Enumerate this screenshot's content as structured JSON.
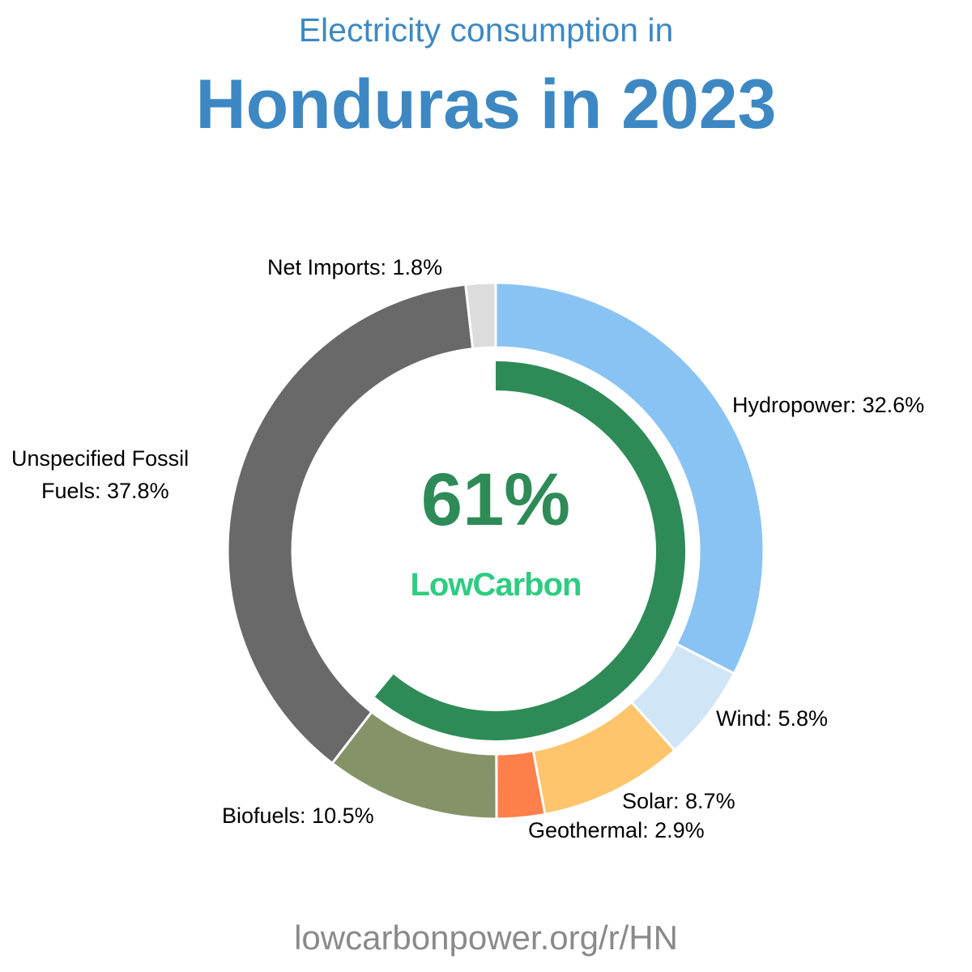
{
  "header": {
    "subtitle": "Electricity consumption in",
    "title": "Honduras in 2023"
  },
  "center": {
    "low_carbon_pct": "61%",
    "brand": "LowCarbon"
  },
  "footer": {
    "url": "lowcarbonpower.org/r/HN"
  },
  "labels": {
    "hydro": "Hydropower: 32.6%",
    "wind": "Wind: 5.8%",
    "solar": "Solar: 8.7%",
    "geothermal": "Geothermal: 2.9%",
    "biofuels": "Biofuels: 10.5%",
    "fossil_line1": "Unspecified Fossil",
    "fossil_line2": "Fuels: 37.8%",
    "imports": "Net Imports: 1.8%"
  },
  "chart_data": {
    "type": "pie",
    "subtype": "donut",
    "title": "Electricity consumption in Honduras in 2023",
    "categories": [
      "Hydropower",
      "Wind",
      "Solar",
      "Geothermal",
      "Biofuels",
      "Unspecified Fossil Fuels",
      "Net Imports"
    ],
    "values": [
      32.6,
      5.8,
      8.7,
      2.9,
      10.5,
      37.8,
      1.8
    ],
    "colors": [
      "#89c3f3",
      "#d0e6f7",
      "#fec56d",
      "#ff7f4a",
      "#869368",
      "#696969",
      "#dcdcdc"
    ],
    "inner_ring": {
      "label": "LowCarbon",
      "value": 61,
      "color": "#2e8b57"
    },
    "legend": "none (direct labels)"
  }
}
